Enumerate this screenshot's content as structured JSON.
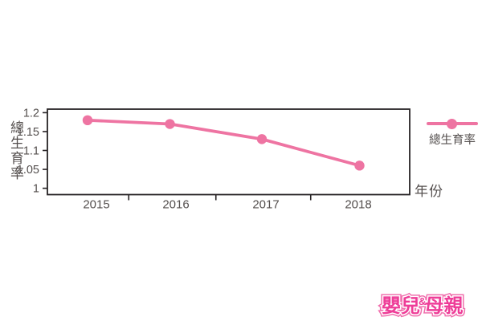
{
  "chart_data": {
    "type": "line",
    "title": "",
    "categories": [
      "2015",
      "2016",
      "2017",
      "2018"
    ],
    "series": [
      {
        "name": "總生育率",
        "values": [
          1.18,
          1.17,
          1.13,
          1.06
        ]
      }
    ],
    "xlabel": "年份",
    "ylabel": "總生育率",
    "ylim": [
      1,
      1.2
    ],
    "yticks": [
      1,
      1.05,
      1.1,
      1.15,
      1.2
    ],
    "ytick_labels": [
      "1",
      "1.05",
      "1.1",
      "1.15",
      "1.2"
    ],
    "grid": false,
    "marker": "circle",
    "legend_position": "right"
  },
  "legend": {
    "label": "總生育率"
  },
  "logo": {
    "part1": "嬰兒",
    "amp": "&",
    "part2": "母親"
  },
  "colors": {
    "line": "#ee74a2",
    "axis": "#272325",
    "tick_text": "#544f4e",
    "logo_pink": "#ee3d98",
    "logo_outline": "#f06fad"
  }
}
